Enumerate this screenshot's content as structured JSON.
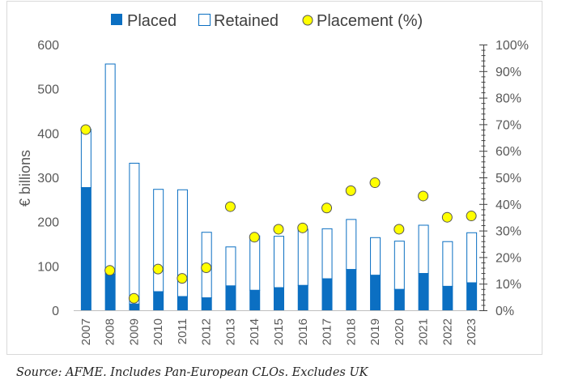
{
  "chart_data": {
    "type": "bar",
    "categories": [
      "2007",
      "2008",
      "2009",
      "2010",
      "2011",
      "2012",
      "2013",
      "2014",
      "2015",
      "2016",
      "2017",
      "2018",
      "2019",
      "2020",
      "2021",
      "2022",
      "2023"
    ],
    "series": [
      {
        "name": "Placed",
        "kind": "stacked-bar",
        "color": "#0b6fc2",
        "values": [
          278,
          83,
          15,
          43,
          32,
          29,
          56,
          46,
          52,
          57,
          72,
          93,
          80,
          48,
          84,
          55,
          63
        ]
      },
      {
        "name": "Retained",
        "kind": "stacked-bar",
        "color": "#ffffff",
        "stroke": "#0b6fc2",
        "values": [
          132,
          474,
          318,
          231,
          241,
          148,
          88,
          123,
          116,
          127,
          113,
          113,
          85,
          109,
          109,
          101,
          113
        ]
      },
      {
        "name": "Placement (%)",
        "kind": "marker",
        "axis": "right",
        "color": "#ffff00",
        "stroke": "#555555",
        "values": [
          68,
          15,
          4.5,
          15.5,
          12,
          16,
          39,
          27.5,
          30.5,
          31,
          38.5,
          45,
          48,
          30.5,
          43,
          35,
          35.5
        ]
      }
    ],
    "ylabel": "€ billions",
    "ylim": [
      0,
      600
    ],
    "yticks": [
      "0",
      "100",
      "200",
      "300",
      "400",
      "500",
      "600"
    ],
    "y2lim": [
      0,
      100
    ],
    "y2ticks": [
      "0%",
      "10%",
      "20%",
      "30%",
      "40%",
      "50%",
      "60%",
      "70%",
      "80%",
      "90%",
      "100%"
    ],
    "legend": [
      "Placed",
      "Retained",
      "Placement (%)"
    ],
    "legend_position": "top",
    "grid": false
  },
  "source_note": "Source: AFME. Includes Pan-European CLOs. Excludes UK"
}
